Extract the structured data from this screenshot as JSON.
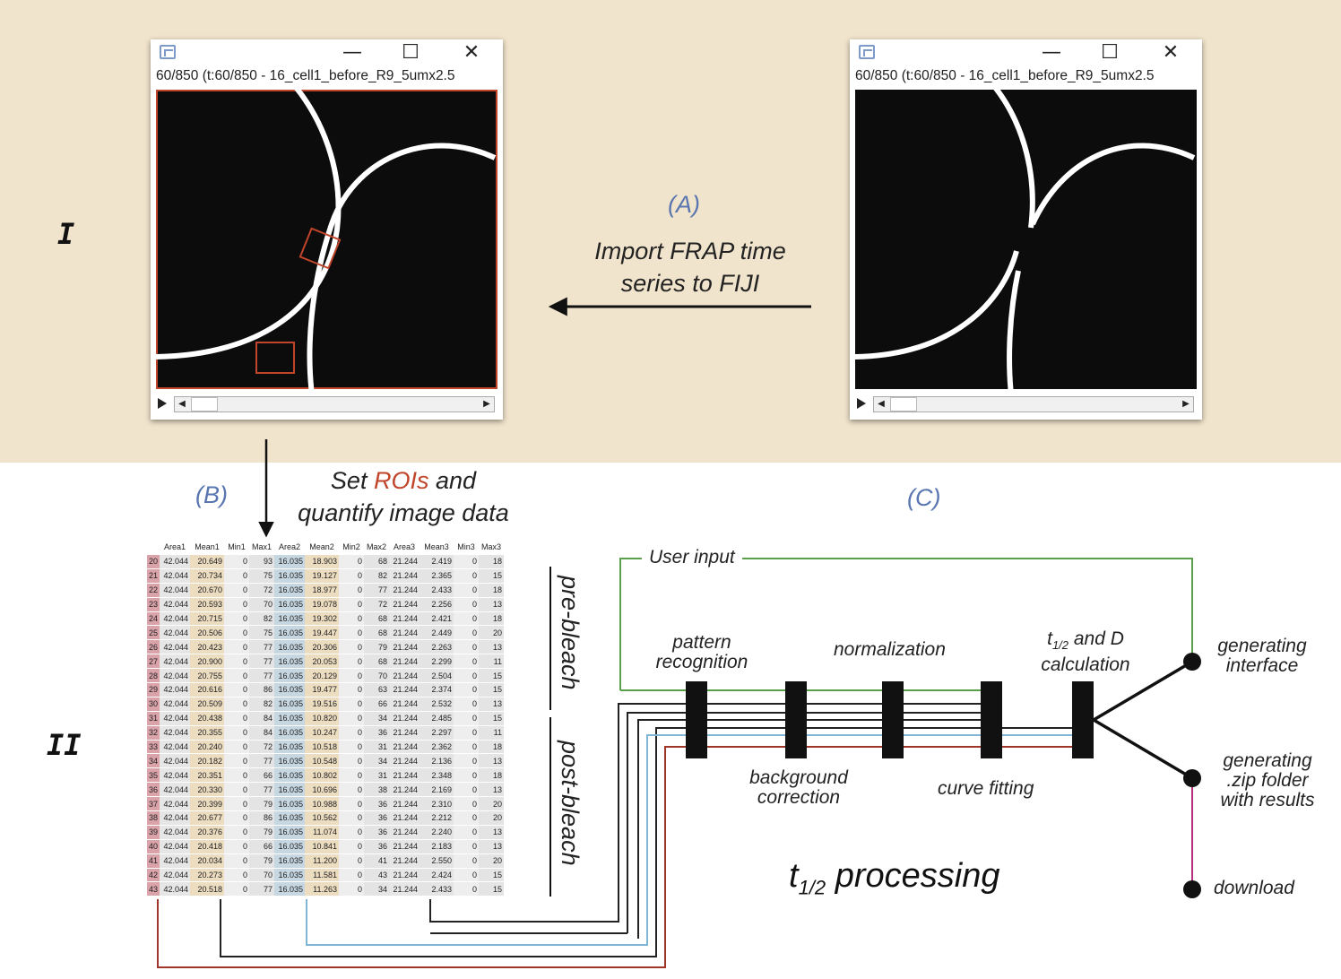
{
  "sections": {
    "top": "I",
    "bottom": "II"
  },
  "steps": {
    "a": {
      "letter": "(A)",
      "caption_line1": "Import FRAP time",
      "caption_line2": "series to FIJI"
    },
    "b": {
      "letter": "(B)",
      "caption_set": "Set",
      "caption_rois": "ROIs",
      "caption_and": "and",
      "caption_line2": "quantify image data"
    },
    "c": {
      "letter": "(C)"
    }
  },
  "window_left": {
    "title": "60/850 (t:60/850 - 16_cell1_before_R9_5umx2.5",
    "minimize": "—",
    "maximize": "☐",
    "close": "✕"
  },
  "window_right": {
    "title": "60/850 (t:60/850 - 16_cell1_before_R9_5umx2.5",
    "minimize": "—",
    "maximize": "☐",
    "close": "✕"
  },
  "table": {
    "headers": [
      "",
      "Area1",
      "Mean1",
      "Min1",
      "Max1",
      "Area2",
      "Mean2",
      "Min2",
      "Max2",
      "Area3",
      "Mean3",
      "Min3",
      "Max3"
    ],
    "rows": [
      [
        "20",
        "42.044",
        "20.649",
        "0",
        "93",
        "16.035",
        "18.903",
        "0",
        "68",
        "21.244",
        "2.419",
        "0",
        "18"
      ],
      [
        "21",
        "42.044",
        "20.734",
        "0",
        "75",
        "16.035",
        "19.127",
        "0",
        "82",
        "21.244",
        "2.365",
        "0",
        "15"
      ],
      [
        "22",
        "42.044",
        "20.670",
        "0",
        "72",
        "16.035",
        "18.977",
        "0",
        "77",
        "21.244",
        "2.433",
        "0",
        "18"
      ],
      [
        "23",
        "42.044",
        "20.593",
        "0",
        "70",
        "16.035",
        "19.078",
        "0",
        "72",
        "21.244",
        "2.256",
        "0",
        "13"
      ],
      [
        "24",
        "42.044",
        "20.715",
        "0",
        "82",
        "16.035",
        "19.302",
        "0",
        "68",
        "21.244",
        "2.421",
        "0",
        "18"
      ],
      [
        "25",
        "42.044",
        "20.506",
        "0",
        "75",
        "16.035",
        "19.447",
        "0",
        "68",
        "21.244",
        "2.449",
        "0",
        "20"
      ],
      [
        "26",
        "42.044",
        "20.423",
        "0",
        "77",
        "16.035",
        "20.306",
        "0",
        "79",
        "21.244",
        "2.263",
        "0",
        "13"
      ],
      [
        "27",
        "42.044",
        "20.900",
        "0",
        "77",
        "16.035",
        "20.053",
        "0",
        "68",
        "21.244",
        "2.299",
        "0",
        "11"
      ],
      [
        "28",
        "42.044",
        "20.755",
        "0",
        "77",
        "16.035",
        "20.129",
        "0",
        "70",
        "21.244",
        "2.504",
        "0",
        "15"
      ],
      [
        "29",
        "42.044",
        "20.616",
        "0",
        "86",
        "16.035",
        "19.477",
        "0",
        "63",
        "21.244",
        "2.374",
        "0",
        "15"
      ],
      [
        "30",
        "42.044",
        "20.509",
        "0",
        "82",
        "16.035",
        "19.516",
        "0",
        "66",
        "21.244",
        "2.532",
        "0",
        "13"
      ],
      [
        "31",
        "42.044",
        "20.438",
        "0",
        "84",
        "16.035",
        "10.820",
        "0",
        "34",
        "21.244",
        "2.485",
        "0",
        "15"
      ],
      [
        "32",
        "42.044",
        "20.355",
        "0",
        "84",
        "16.035",
        "10.247",
        "0",
        "36",
        "21.244",
        "2.297",
        "0",
        "11"
      ],
      [
        "33",
        "42.044",
        "20.240",
        "0",
        "72",
        "16.035",
        "10.518",
        "0",
        "31",
        "21.244",
        "2.362",
        "0",
        "18"
      ],
      [
        "34",
        "42.044",
        "20.182",
        "0",
        "77",
        "16.035",
        "10.548",
        "0",
        "34",
        "21.244",
        "2.136",
        "0",
        "13"
      ],
      [
        "35",
        "42.044",
        "20.351",
        "0",
        "66",
        "16.035",
        "10.802",
        "0",
        "31",
        "21.244",
        "2.348",
        "0",
        "18"
      ],
      [
        "36",
        "42.044",
        "20.330",
        "0",
        "77",
        "16.035",
        "10.696",
        "0",
        "38",
        "21.244",
        "2.169",
        "0",
        "13"
      ],
      [
        "37",
        "42.044",
        "20.399",
        "0",
        "79",
        "16.035",
        "10.988",
        "0",
        "36",
        "21.244",
        "2.310",
        "0",
        "20"
      ],
      [
        "38",
        "42.044",
        "20.677",
        "0",
        "86",
        "16.035",
        "10.562",
        "0",
        "36",
        "21.244",
        "2.212",
        "0",
        "20"
      ],
      [
        "39",
        "42.044",
        "20.376",
        "0",
        "79",
        "16.035",
        "11.074",
        "0",
        "36",
        "21.244",
        "2.240",
        "0",
        "13"
      ],
      [
        "40",
        "42.044",
        "20.418",
        "0",
        "66",
        "16.035",
        "10.841",
        "0",
        "36",
        "21.244",
        "2.183",
        "0",
        "13"
      ],
      [
        "41",
        "42.044",
        "20.034",
        "0",
        "79",
        "16.035",
        "11.200",
        "0",
        "41",
        "21.244",
        "2.550",
        "0",
        "20"
      ],
      [
        "42",
        "42.044",
        "20.273",
        "0",
        "70",
        "16.035",
        "11.581",
        "0",
        "43",
        "21.244",
        "2.424",
        "0",
        "15"
      ],
      [
        "43",
        "42.044",
        "20.518",
        "0",
        "77",
        "16.035",
        "11.263",
        "0",
        "34",
        "21.244",
        "2.433",
        "0",
        "15"
      ]
    ]
  },
  "bleach_labels": {
    "pre": "pre-bleach",
    "post": "post-bleach"
  },
  "pipeline": {
    "user_input": "User input",
    "pattern_recognition_1": "pattern",
    "pattern_recognition_2": "recognition",
    "normalization": "normalization",
    "t_half_prefix": "t",
    "t_half_sub": "1/2",
    "t_half_rest": " and D",
    "calculation": "calculation",
    "background_correction_1": "background",
    "background_correction_2": "correction",
    "curve_fitting": "curve fitting",
    "title_prefix": "t",
    "title_sub": "1/2",
    "title_rest": " processing",
    "outputs": {
      "interface_1": "generating",
      "interface_2": "interface",
      "zip_1": "generating",
      "zip_2": ".zip folder",
      "zip_3": "with results",
      "download": "download"
    }
  },
  "colors": {
    "background_band": "#f1e4cc",
    "roi": "#c0452b",
    "user_line": "#5aa04a",
    "blue_line": "#7fb6d8",
    "red_line": "#a0352a",
    "pink_line": "#b6307c",
    "letter": "#5a76b0"
  }
}
